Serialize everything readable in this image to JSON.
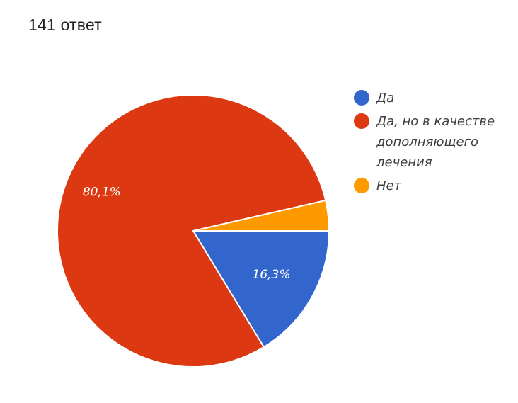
{
  "header": {
    "response_count": "141 ответ"
  },
  "chart_data": {
    "type": "pie",
    "slices": [
      {
        "name": "Да",
        "label": "16,3%",
        "value": 16.3,
        "color": "#3366cc"
      },
      {
        "name": "Да, но в качестве дополняющего лечения",
        "label": "80,1%",
        "value": 80.1,
        "color": "#dc3912"
      },
      {
        "name": "Нет",
        "label": "",
        "value": 3.6,
        "color": "#ff9900"
      }
    ],
    "legend_position": "right"
  }
}
